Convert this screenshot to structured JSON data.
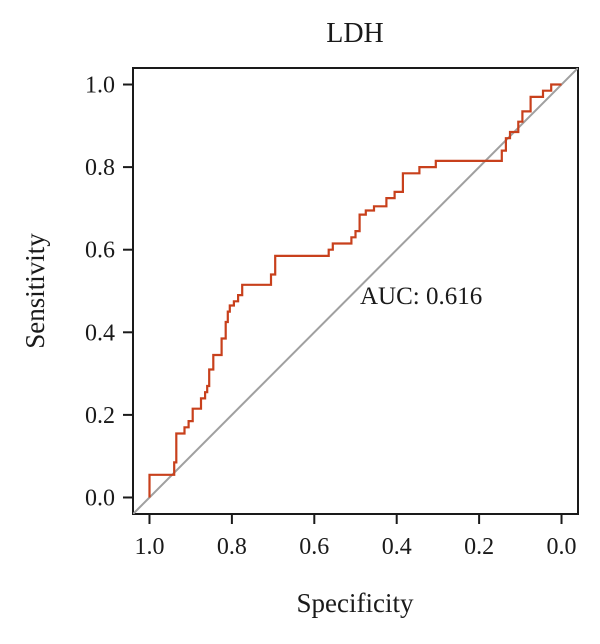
{
  "chart_data": {
    "type": "line",
    "title": "LDH",
    "xlabel": "Specificity",
    "ylabel": "Sensitivity",
    "xlim": [
      1.0,
      0.0
    ],
    "ylim": [
      0.0,
      1.0
    ],
    "x_reversed": true,
    "grid": false,
    "x_ticks": [
      "1.0",
      "0.8",
      "0.6",
      "0.4",
      "0.2",
      "0.0"
    ],
    "y_ticks": [
      "0.0",
      "0.2",
      "0.4",
      "0.6",
      "0.8",
      "1.0"
    ],
    "annotation": "AUC: 0.616",
    "colors": {
      "roc": "#c8401c",
      "reference": "#a0a0a0",
      "axis": "#1a1a1a"
    },
    "series": [
      {
        "specificity": [
          1.0,
          1.0,
          0.94,
          0.94,
          0.935,
          0.935,
          0.915,
          0.915,
          0.905,
          0.905,
          0.895,
          0.895,
          0.875,
          0.875,
          0.865,
          0.865,
          0.86,
          0.86,
          0.855,
          0.855,
          0.845,
          0.845,
          0.825,
          0.825,
          0.815,
          0.815,
          0.81,
          0.81,
          0.805,
          0.805,
          0.795,
          0.795,
          0.785,
          0.785,
          0.775,
          0.775,
          0.705,
          0.705,
          0.695,
          0.695,
          0.565,
          0.565,
          0.555,
          0.555,
          0.51,
          0.51,
          0.5,
          0.5,
          0.49,
          0.49,
          0.475,
          0.475,
          0.455,
          0.455,
          0.425,
          0.425,
          0.405,
          0.405,
          0.385,
          0.385,
          0.345,
          0.345,
          0.305,
          0.305,
          0.145,
          0.145,
          0.135,
          0.135,
          0.125,
          0.125,
          0.105,
          0.105,
          0.095,
          0.095,
          0.075,
          0.075,
          0.045,
          0.045,
          0.025,
          0.025,
          0.0
        ],
        "sensitivity": [
          0.0,
          0.055,
          0.055,
          0.085,
          0.085,
          0.155,
          0.155,
          0.17,
          0.17,
          0.185,
          0.185,
          0.215,
          0.215,
          0.24,
          0.24,
          0.255,
          0.255,
          0.27,
          0.27,
          0.31,
          0.31,
          0.345,
          0.345,
          0.385,
          0.385,
          0.425,
          0.425,
          0.45,
          0.45,
          0.465,
          0.465,
          0.475,
          0.475,
          0.49,
          0.49,
          0.515,
          0.515,
          0.54,
          0.54,
          0.585,
          0.585,
          0.6,
          0.6,
          0.615,
          0.615,
          0.63,
          0.63,
          0.645,
          0.645,
          0.685,
          0.685,
          0.695,
          0.695,
          0.705,
          0.705,
          0.725,
          0.725,
          0.74,
          0.74,
          0.785,
          0.785,
          0.8,
          0.8,
          0.815,
          0.815,
          0.84,
          0.84,
          0.87,
          0.87,
          0.885,
          0.885,
          0.91,
          0.91,
          0.935,
          0.935,
          0.97,
          0.97,
          0.985,
          0.985,
          1.0,
          1.0
        ]
      }
    ]
  }
}
